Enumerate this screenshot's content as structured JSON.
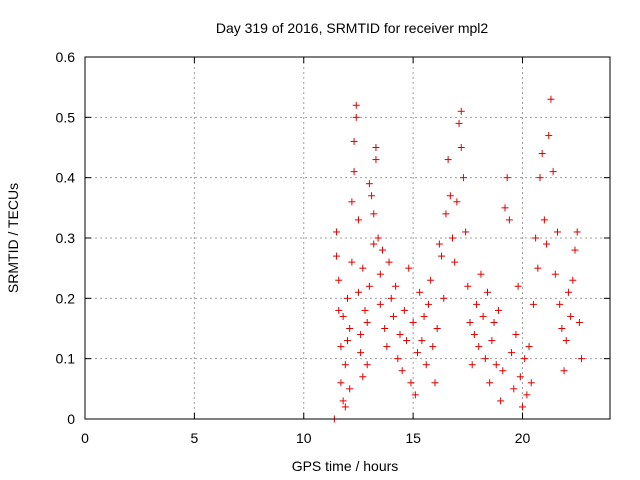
{
  "chart_data": {
    "type": "scatter",
    "title": "Day 319 of 2016, SRMTID for receiver mpl2",
    "xlabel": "GPS time / hours",
    "ylabel": "SRMTID / TECUs",
    "xlim": [
      0,
      24
    ],
    "ylim": [
      0,
      0.6
    ],
    "xticks": [
      0,
      5,
      10,
      15,
      20
    ],
    "xtick_labels": [
      "0",
      "5",
      "10",
      "15",
      "20"
    ],
    "yticks": [
      0,
      0.1,
      0.2,
      0.3,
      0.4,
      0.5,
      0.6
    ],
    "ytick_labels": [
      "0",
      "0.1",
      "0.2",
      "0.3",
      "0.4",
      "0.5",
      "0.6"
    ],
    "grid": true,
    "marker": "+",
    "color": "#e00000",
    "series": [
      {
        "name": "mpl2",
        "x_range": [
          11.4,
          22.7
        ],
        "notes": "dense point cloud; peaks near 12.4h (0.52), 17.2h (0.51), 21.2h (0.53)",
        "points": [
          [
            11.4,
            0.0
          ],
          [
            11.5,
            0.31
          ],
          [
            11.5,
            0.27
          ],
          [
            11.6,
            0.23
          ],
          [
            11.6,
            0.18
          ],
          [
            11.7,
            0.12
          ],
          [
            11.7,
            0.06
          ],
          [
            11.8,
            0.03
          ],
          [
            11.8,
            0.17
          ],
          [
            11.9,
            0.09
          ],
          [
            11.9,
            0.02
          ],
          [
            12.0,
            0.13
          ],
          [
            12.0,
            0.2
          ],
          [
            12.1,
            0.05
          ],
          [
            12.1,
            0.15
          ],
          [
            12.2,
            0.26
          ],
          [
            12.2,
            0.36
          ],
          [
            12.3,
            0.41
          ],
          [
            12.3,
            0.46
          ],
          [
            12.4,
            0.52
          ],
          [
            12.4,
            0.5
          ],
          [
            12.5,
            0.21
          ],
          [
            12.5,
            0.33
          ],
          [
            12.6,
            0.14
          ],
          [
            12.6,
            0.11
          ],
          [
            12.7,
            0.07
          ],
          [
            12.7,
            0.25
          ],
          [
            12.8,
            0.18
          ],
          [
            12.9,
            0.16
          ],
          [
            12.9,
            0.09
          ],
          [
            13.0,
            0.22
          ],
          [
            13.0,
            0.39
          ],
          [
            13.1,
            0.37
          ],
          [
            13.2,
            0.29
          ],
          [
            13.2,
            0.34
          ],
          [
            13.3,
            0.45
          ],
          [
            13.3,
            0.43
          ],
          [
            13.4,
            0.3
          ],
          [
            13.5,
            0.24
          ],
          [
            13.5,
            0.19
          ],
          [
            13.6,
            0.28
          ],
          [
            13.7,
            0.15
          ],
          [
            13.8,
            0.12
          ],
          [
            13.9,
            0.26
          ],
          [
            14.0,
            0.2
          ],
          [
            14.1,
            0.17
          ],
          [
            14.2,
            0.22
          ],
          [
            14.3,
            0.1
          ],
          [
            14.4,
            0.14
          ],
          [
            14.5,
            0.08
          ],
          [
            14.6,
            0.18
          ],
          [
            14.7,
            0.13
          ],
          [
            14.8,
            0.25
          ],
          [
            14.9,
            0.06
          ],
          [
            15.0,
            0.16
          ],
          [
            15.1,
            0.04
          ],
          [
            15.2,
            0.11
          ],
          [
            15.3,
            0.21
          ],
          [
            15.4,
            0.13
          ],
          [
            15.5,
            0.17
          ],
          [
            15.6,
            0.09
          ],
          [
            15.7,
            0.19
          ],
          [
            15.8,
            0.23
          ],
          [
            15.9,
            0.12
          ],
          [
            16.0,
            0.06
          ],
          [
            16.1,
            0.15
          ],
          [
            16.2,
            0.29
          ],
          [
            16.3,
            0.27
          ],
          [
            16.4,
            0.2
          ],
          [
            16.5,
            0.34
          ],
          [
            16.6,
            0.43
          ],
          [
            16.7,
            0.37
          ],
          [
            16.8,
            0.3
          ],
          [
            16.9,
            0.26
          ],
          [
            17.0,
            0.36
          ],
          [
            17.1,
            0.49
          ],
          [
            17.2,
            0.51
          ],
          [
            17.2,
            0.45
          ],
          [
            17.3,
            0.4
          ],
          [
            17.4,
            0.31
          ],
          [
            17.5,
            0.22
          ],
          [
            17.6,
            0.16
          ],
          [
            17.7,
            0.09
          ],
          [
            17.8,
            0.14
          ],
          [
            17.9,
            0.19
          ],
          [
            18.0,
            0.12
          ],
          [
            18.1,
            0.24
          ],
          [
            18.2,
            0.17
          ],
          [
            18.3,
            0.1
          ],
          [
            18.4,
            0.21
          ],
          [
            18.5,
            0.06
          ],
          [
            18.6,
            0.13
          ],
          [
            18.7,
            0.16
          ],
          [
            18.8,
            0.09
          ],
          [
            18.9,
            0.18
          ],
          [
            19.0,
            0.03
          ],
          [
            19.1,
            0.08
          ],
          [
            19.2,
            0.35
          ],
          [
            19.3,
            0.4
          ],
          [
            19.4,
            0.33
          ],
          [
            19.5,
            0.11
          ],
          [
            19.6,
            0.05
          ],
          [
            19.7,
            0.14
          ],
          [
            19.8,
            0.22
          ],
          [
            19.9,
            0.07
          ],
          [
            20.0,
            0.02
          ],
          [
            20.1,
            0.1
          ],
          [
            20.2,
            0.04
          ],
          [
            20.3,
            0.12
          ],
          [
            20.4,
            0.06
          ],
          [
            20.5,
            0.19
          ],
          [
            20.6,
            0.3
          ],
          [
            20.7,
            0.25
          ],
          [
            20.8,
            0.4
          ],
          [
            20.9,
            0.44
          ],
          [
            21.0,
            0.33
          ],
          [
            21.1,
            0.29
          ],
          [
            21.2,
            0.47
          ],
          [
            21.3,
            0.53
          ],
          [
            21.4,
            0.41
          ],
          [
            21.5,
            0.24
          ],
          [
            21.6,
            0.31
          ],
          [
            21.7,
            0.19
          ],
          [
            21.8,
            0.15
          ],
          [
            21.9,
            0.08
          ],
          [
            22.0,
            0.13
          ],
          [
            22.1,
            0.21
          ],
          [
            22.2,
            0.17
          ],
          [
            22.3,
            0.23
          ],
          [
            22.4,
            0.28
          ],
          [
            22.5,
            0.31
          ],
          [
            22.6,
            0.16
          ],
          [
            22.7,
            0.1
          ]
        ]
      }
    ]
  }
}
